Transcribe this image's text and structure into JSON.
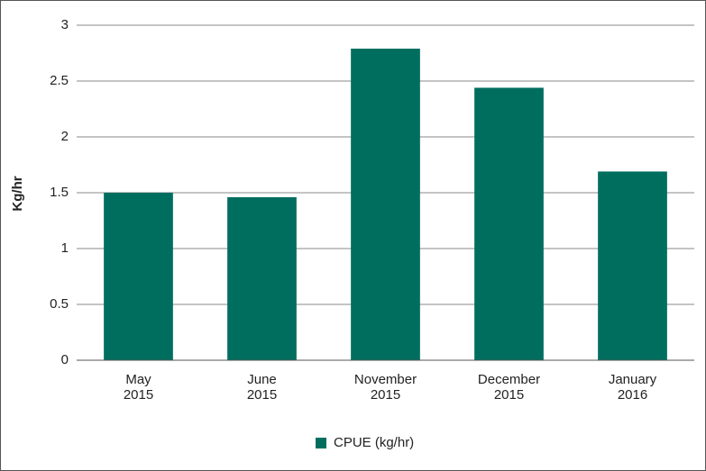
{
  "chart_data": {
    "type": "bar",
    "y_label": "Kg/hr",
    "categories": [
      "May 2015",
      "June 2015",
      "November 2015",
      "December 2015",
      "January 2016"
    ],
    "series": [
      {
        "name": "CPUE (kg/hr)",
        "color": "#006e5f",
        "values": [
          1.5,
          1.46,
          2.79,
          2.44,
          1.69
        ]
      }
    ],
    "ylim": [
      0,
      3
    ],
    "yticks": [
      0,
      0.5,
      1,
      1.5,
      2,
      2.5,
      3
    ],
    "grid": true,
    "legend": "bottom"
  }
}
